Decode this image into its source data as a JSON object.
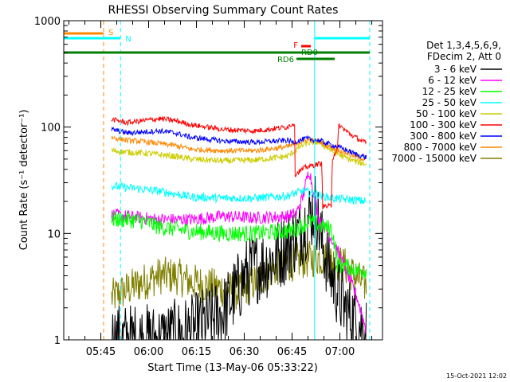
{
  "chart_data": {
    "type": "line",
    "title": "RHESSI Observing Summary Count Rates",
    "xlabel": "Start Time (13-May-06 05:33:22)",
    "ylabel": "Count Rate (s⁻¹ detector⁻¹)",
    "yscale": "log",
    "ylim": [
      1,
      1000
    ],
    "y_ticks": [
      1,
      10,
      100,
      1000
    ],
    "y_tick_labels": [
      "1",
      "10",
      "100",
      "1000"
    ],
    "x_unit": "minutes since 05:33:22",
    "xlim": [
      0,
      100
    ],
    "x_ticks": [
      {
        "value": 11.63,
        "label": "05:45"
      },
      {
        "value": 26.63,
        "label": "06:00"
      },
      {
        "value": 41.63,
        "label": "06:15"
      },
      {
        "value": 56.63,
        "label": "06:30"
      },
      {
        "value": 71.63,
        "label": "06:45"
      },
      {
        "value": 86.63,
        "label": "07:00"
      }
    ],
    "legend_title": [
      "Det 1,3,4,5,6,9,",
      "FDecim 2, Att 0"
    ],
    "series": [
      {
        "name": "3 - 6 keV",
        "color": "#000000",
        "x": [
          15,
          20,
          30,
          40,
          50,
          58,
          65,
          70,
          74,
          77,
          79,
          81,
          84,
          88,
          92,
          95
        ],
        "values": [
          1.0,
          1.0,
          1.0,
          1.2,
          1.8,
          4.5,
          5.5,
          7.5,
          10,
          14,
          18,
          8,
          4,
          2,
          1.5,
          1.2
        ]
      },
      {
        "name": "6 - 12 keV",
        "color": "#ff00ff",
        "x": [
          15,
          20,
          25,
          30,
          40,
          50,
          60,
          70,
          73,
          75,
          76,
          77,
          78,
          80,
          84,
          88,
          92,
          95
        ],
        "values": [
          15,
          14.5,
          14,
          13.5,
          13.5,
          14.5,
          14,
          14.5,
          15.5,
          22,
          30,
          40,
          28,
          14,
          9,
          5,
          2.5,
          1.2
        ]
      },
      {
        "name": "12 - 25 keV",
        "color": "#00ff00",
        "x": [
          15,
          20,
          25,
          30,
          35,
          40,
          50,
          60,
          70,
          73,
          75,
          77,
          80,
          84,
          85,
          86,
          88,
          92,
          95
        ],
        "values": [
          13.5,
          13.5,
          13,
          11.5,
          11,
          10.5,
          10,
          10,
          10.5,
          11,
          12,
          13,
          12,
          11,
          8,
          5,
          5,
          4.5,
          4.5
        ]
      },
      {
        "name": "25 - 50 keV",
        "color": "#00ffff",
        "x": [
          15,
          20,
          25,
          30,
          35,
          40,
          50,
          60,
          70,
          73,
          75,
          78,
          80,
          84,
          88,
          92,
          95
        ],
        "values": [
          28,
          27,
          26,
          25,
          23.5,
          22,
          21.5,
          21.5,
          22.5,
          24,
          25,
          24,
          23,
          21.5,
          21,
          20.5,
          20
        ]
      },
      {
        "name": "50 - 100 keV",
        "color": "#cccc00",
        "x": [
          15,
          20,
          25,
          30,
          35,
          40,
          50,
          60,
          70,
          72,
          74,
          76,
          78,
          80,
          84,
          88,
          92,
          95
        ],
        "values": [
          60,
          58,
          57,
          55,
          53,
          50,
          48,
          49,
          53,
          58,
          65,
          70,
          72,
          72,
          60,
          52,
          47,
          45
        ]
      },
      {
        "name": "100 - 300 keV",
        "color": "#ff0000",
        "x": [
          15,
          20,
          25,
          30,
          35,
          40,
          50,
          60,
          70,
          72.4,
          72.6,
          76,
          80,
          81,
          81.2,
          84,
          84.2,
          86,
          86.2,
          90,
          95
        ],
        "values": [
          118,
          110,
          115,
          120,
          115,
          105,
          95,
          92,
          100,
          110,
          36,
          42,
          45,
          45,
          18,
          18,
          50,
          65,
          105,
          85,
          70
        ]
      },
      {
        "name": "300 - 800 keV",
        "color": "#0000ff",
        "x": [
          15,
          20,
          25,
          30,
          35,
          40,
          50,
          60,
          70,
          72,
          74,
          76,
          78,
          80,
          84,
          88,
          92,
          95
        ],
        "values": [
          95,
          88,
          90,
          92,
          88,
          80,
          74,
          72,
          75,
          72,
          75,
          78,
          76,
          75,
          68,
          62,
          55,
          52
        ]
      },
      {
        "name": "800 - 7000 keV",
        "color": "#ff8800",
        "x": [
          15,
          20,
          25,
          30,
          35,
          40,
          50,
          60,
          70,
          72,
          74,
          76,
          78,
          80,
          84,
          88,
          92,
          95
        ],
        "values": [
          80,
          75,
          73,
          70,
          67,
          62,
          60,
          60,
          65,
          68,
          72,
          76,
          75,
          74,
          64,
          58,
          52,
          50
        ]
      },
      {
        "name": "7000 - 15000 keV",
        "color": "#808000",
        "x": [
          15,
          20,
          25,
          30,
          35,
          40,
          50,
          55,
          60,
          65,
          70,
          75,
          79,
          80,
          84,
          88,
          92,
          95
        ],
        "values": [
          2.5,
          3,
          3.5,
          4,
          4,
          3.5,
          3,
          2.8,
          3.5,
          4.5,
          5.2,
          5.6,
          5.8,
          6,
          5.5,
          5,
          3.8,
          3.2
        ]
      }
    ],
    "annotations": [
      {
        "label": "S",
        "color": "#ff8800"
      },
      {
        "label": "N",
        "color": "#00ffff"
      },
      {
        "label": "F",
        "color": "#ff0000"
      },
      {
        "label": "RD0",
        "color": "#008000"
      },
      {
        "label": "RD6",
        "color": "#008000"
      }
    ]
  },
  "footer": {
    "date_stamp": "15-Oct-2021 12:02"
  }
}
